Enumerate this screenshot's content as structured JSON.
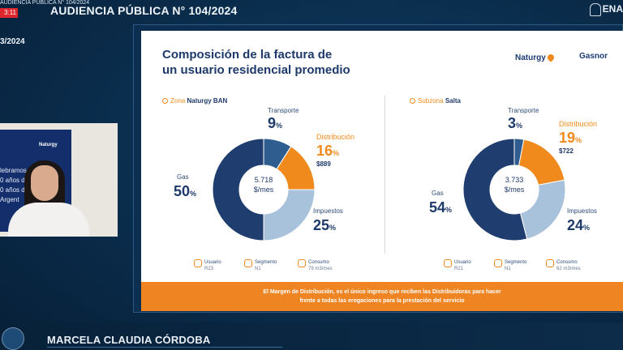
{
  "stream": {
    "title": "AUDIENCIA PÚBLICA N° 104/2024",
    "live_time": "3:11",
    "date_partial": "3/2024"
  },
  "header": {
    "hearing_title": "AUDIENCIA PÚBLICA N° 104/2024",
    "logo_text": "ENA"
  },
  "slide": {
    "title_line1": "Composición de la factura de",
    "title_line2": "un usuario residencial promedio",
    "logos": {
      "naturgy": "Naturgy",
      "gasnor": "Gasnor"
    },
    "banner_line1": "El Margen de Distribución, es el único ingreso que reciben las Distribuidoras para hacer",
    "banner_line2": "frente a todas las erogaciones para la prestación del servicio",
    "colors": {
      "gas": "#1f3d6e",
      "transporte": "#2f5d8f",
      "distribucion": "#f08a1c",
      "impuestos": "#a8c2dc"
    },
    "zones": [
      {
        "zone_prefix": "Zona",
        "zone_name": "Naturgy BAN",
        "center_value": "5.718",
        "center_unit": "$/mes",
        "segments": {
          "transporte": {
            "label": "Transporte",
            "pct": "9",
            "value": 9
          },
          "distribucion": {
            "label": "Distribución",
            "pct": "16",
            "value": 16,
            "amount": "$889"
          },
          "impuestos": {
            "label": "Impuestos",
            "pct": "25",
            "value": 25
          },
          "gas": {
            "label": "Gas",
            "pct": "50",
            "value": 50
          }
        },
        "meta": [
          {
            "label": "Usuario",
            "value": "R23"
          },
          {
            "label": "Segmento",
            "value": "N1"
          },
          {
            "label": "Consumo",
            "value": "79 m3/mes"
          }
        ]
      },
      {
        "zone_prefix": "Subzona",
        "zone_name": "Salta",
        "center_value": "3.733",
        "center_unit": "$/mes",
        "segments": {
          "transporte": {
            "label": "Transporte",
            "pct": "3",
            "value": 3
          },
          "distribucion": {
            "label": "Distribución",
            "pct": "19",
            "value": 19,
            "amount": "$722"
          },
          "impuestos": {
            "label": "Impuestos",
            "pct": "24",
            "value": 24
          },
          "gas": {
            "label": "Gas",
            "pct": "54",
            "value": 54
          }
        },
        "meta": [
          {
            "label": "Usuario",
            "value": "R21"
          },
          {
            "label": "Segmento",
            "value": "N1"
          },
          {
            "label": "Consumo",
            "value": "62 m3/mes"
          }
        ]
      }
    ],
    "pct_symbol": "%"
  },
  "webcam": {
    "poster_logo": "Naturgy",
    "poster_lines": [
      "lebramos",
      "0 años d",
      "0 años d",
      "Argent"
    ]
  },
  "speaker": {
    "name": "MARCELA CLAUDIA CÓRDOBA"
  }
}
